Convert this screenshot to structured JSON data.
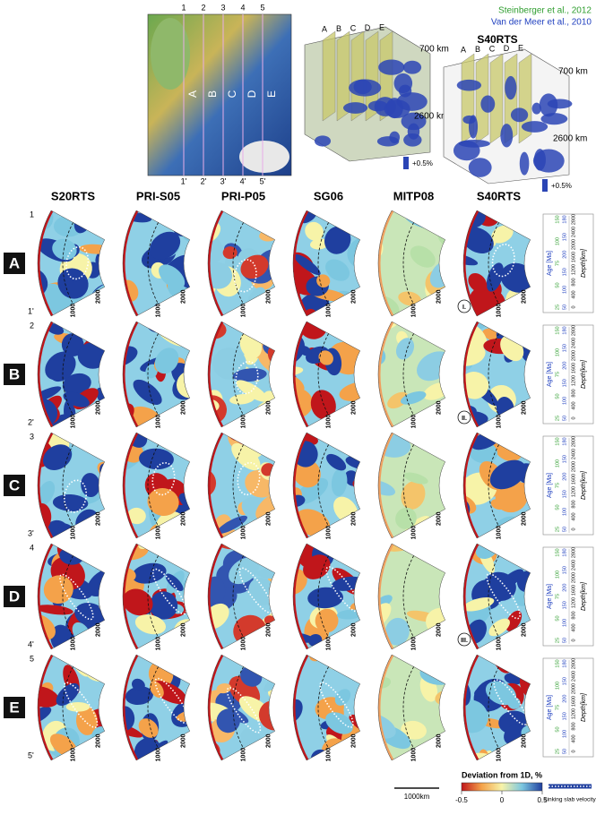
{
  "credits": [
    "Steinberger et al., 2012",
    "Van der Meer et al., 2010"
  ],
  "map": {
    "top_labels": [
      "1",
      "2",
      "3",
      "4",
      "5"
    ],
    "bottom_labels": [
      "1'",
      "2'",
      "3'",
      "4'",
      "5'"
    ],
    "section_labels": [
      "A",
      "B",
      "C",
      "D",
      "E"
    ]
  },
  "views": [
    {
      "depths": [
        "700 km",
        "2600 km"
      ],
      "scale": "+0.5%"
    },
    {
      "title": "S40RTS",
      "depths": [
        "700 km",
        "2600 km"
      ],
      "scale": "+0.5%"
    }
  ],
  "models": [
    "S20RTS",
    "PRI-S05",
    "PRI-P05",
    "SG06",
    "MITP08",
    "S40RTS"
  ],
  "rows": [
    {
      "label": "A",
      "start": "1",
      "end": "1'"
    },
    {
      "label": "B",
      "start": "2",
      "end": "2'"
    },
    {
      "label": "C",
      "start": "3",
      "end": "3'"
    },
    {
      "label": "D",
      "start": "4",
      "end": "4'"
    },
    {
      "label": "E",
      "start": "5",
      "end": "5'"
    }
  ],
  "depth_ticks": [
    "1000",
    "2000"
  ],
  "annotations": [
    "I.",
    "II.",
    "III."
  ],
  "age_legend": {
    "age_title": "Age [Ma]",
    "depth_title": "Depth[km]",
    "depths": [
      "0",
      "400",
      "800",
      "1200",
      "1600",
      "2000",
      "2400",
      "2800"
    ],
    "ages_steinberger": [
      "25",
      "50",
      "75",
      "100",
      "150"
    ],
    "ages_vandermeer": [
      "50",
      "100",
      "150",
      "200",
      "150",
      "180"
    ]
  },
  "colorbar": {
    "title": "Deviation from 1D, %",
    "ticks": [
      "-0.5",
      "0",
      "0.5"
    ],
    "slab_label": "sinking slab velocity",
    "scale_bar": "1000km"
  }
}
